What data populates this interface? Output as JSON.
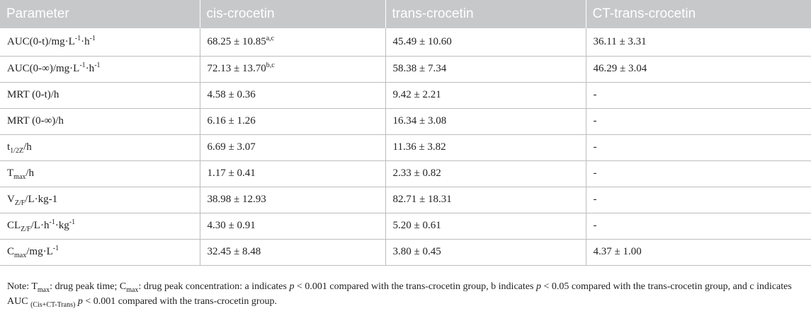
{
  "table": {
    "headers": [
      "Parameter",
      "cis-crocetin",
      "trans-crocetin",
      "CT-trans-crocetin"
    ],
    "rows": [
      {
        "param": "AUC(0-t)/mg·L",
        "param_sup": "-1",
        "param_rest": "·h",
        "param_sup2": "-1",
        "cis": "68.25 ± 10.85",
        "cis_sup": "a,c",
        "trans": "45.49 ± 10.60",
        "ct": "36.11 ± 3.31"
      },
      {
        "param": "AUC(0-∞)/mg·L",
        "param_sup": "-1",
        "param_rest": "·h",
        "param_sup2": "-1",
        "cis": "72.13 ± 13.70",
        "cis_sup": "b,c",
        "trans": "58.38 ± 7.34",
        "ct": "46.29 ± 3.04"
      },
      {
        "param": "MRT (0-t)/h",
        "cis": "4.58 ± 0.36",
        "trans": "9.42 ± 2.21",
        "ct": "-"
      },
      {
        "param": "MRT (0-∞)/h",
        "cis": "6.16 ± 1.26",
        "trans": "16.34 ± 3.08",
        "ct": "-"
      },
      {
        "param": "t",
        "param_sub": "1/2Z",
        "param_rest": "/h",
        "cis": "6.69 ± 3.07",
        "trans": "11.36 ± 3.82",
        "ct": "-"
      },
      {
        "param": "T",
        "param_sub": "max",
        "param_rest": "/h",
        "cis": "1.17 ± 0.41",
        "trans": "2.33 ± 0.82",
        "ct": "-"
      },
      {
        "param": "V",
        "param_sub": "Z/F",
        "param_rest": "/L·kg-1",
        "cis": "38.98 ± 12.93",
        "trans": "82.71 ± 18.31",
        "ct": "-"
      },
      {
        "param": "CL",
        "param_sub": "Z/F",
        "param_rest": "/L·h",
        "param_sup2": "-1",
        "param_rest2": "·kg",
        "param_sup3": "-1",
        "cis": "4.30 ± 0.91",
        "trans": "5.20 ± 0.61",
        "ct": "-"
      },
      {
        "param": "C",
        "param_sub": "max",
        "param_rest": "/mg·L",
        "param_sup2": "-1",
        "cis": "32.45 ± 8.48",
        "trans": "3.80 ± 0.45",
        "ct": "4.37 ± 1.00"
      }
    ]
  },
  "note": {
    "p1": "Note: T",
    "s1": "max",
    "p2": ": drug peak time; C",
    "s2": "max",
    "p3": ": drug peak concentration: a indicates ",
    "i1": "p",
    "p4": " < 0.001 compared with the trans-crocetin group, b indicates ",
    "i2": "p",
    "p5": " < 0.05 compared with the trans-crocetin group, and c indicates AUC ",
    "s3": "(Cis+CT-Trans)",
    "p6": " ",
    "i3": "p",
    "p7": " < 0.001 compared with the trans-crocetin group."
  }
}
